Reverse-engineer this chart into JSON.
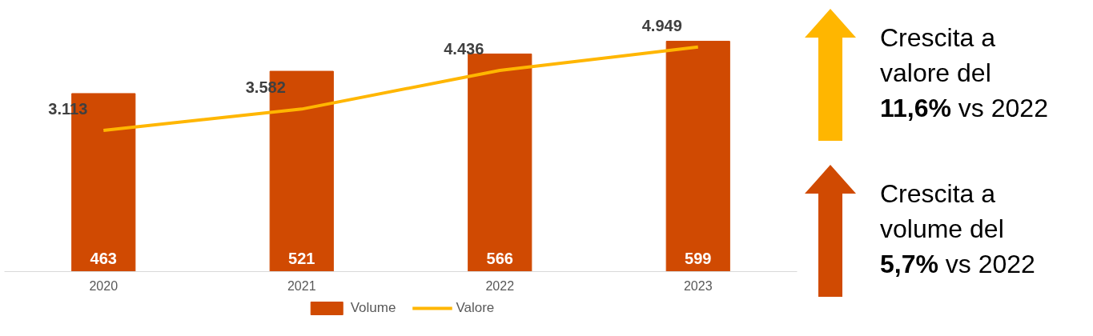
{
  "chart_data": {
    "type": "bar",
    "categories": [
      "2020",
      "2021",
      "2022",
      "2023"
    ],
    "series": [
      {
        "name": "Volume",
        "color": "#d04a02",
        "values": [
          463,
          521,
          566,
          599
        ]
      },
      {
        "name": "Valore",
        "type": "line",
        "axis": "y2",
        "color": "#ffb600",
        "values": [
          3113,
          3582,
          4436,
          4949
        ],
        "value_labels": [
          "3.113",
          "3.582",
          "4.436",
          "4.949"
        ]
      }
    ],
    "data_labels": true,
    "legend": "bottom",
    "grid": false,
    "marker": "none",
    "annotations": [
      "Crescita a valore del 11,6% vs 2022",
      "Crescita a volume del 5,7% vs 2022"
    ]
  }
}
